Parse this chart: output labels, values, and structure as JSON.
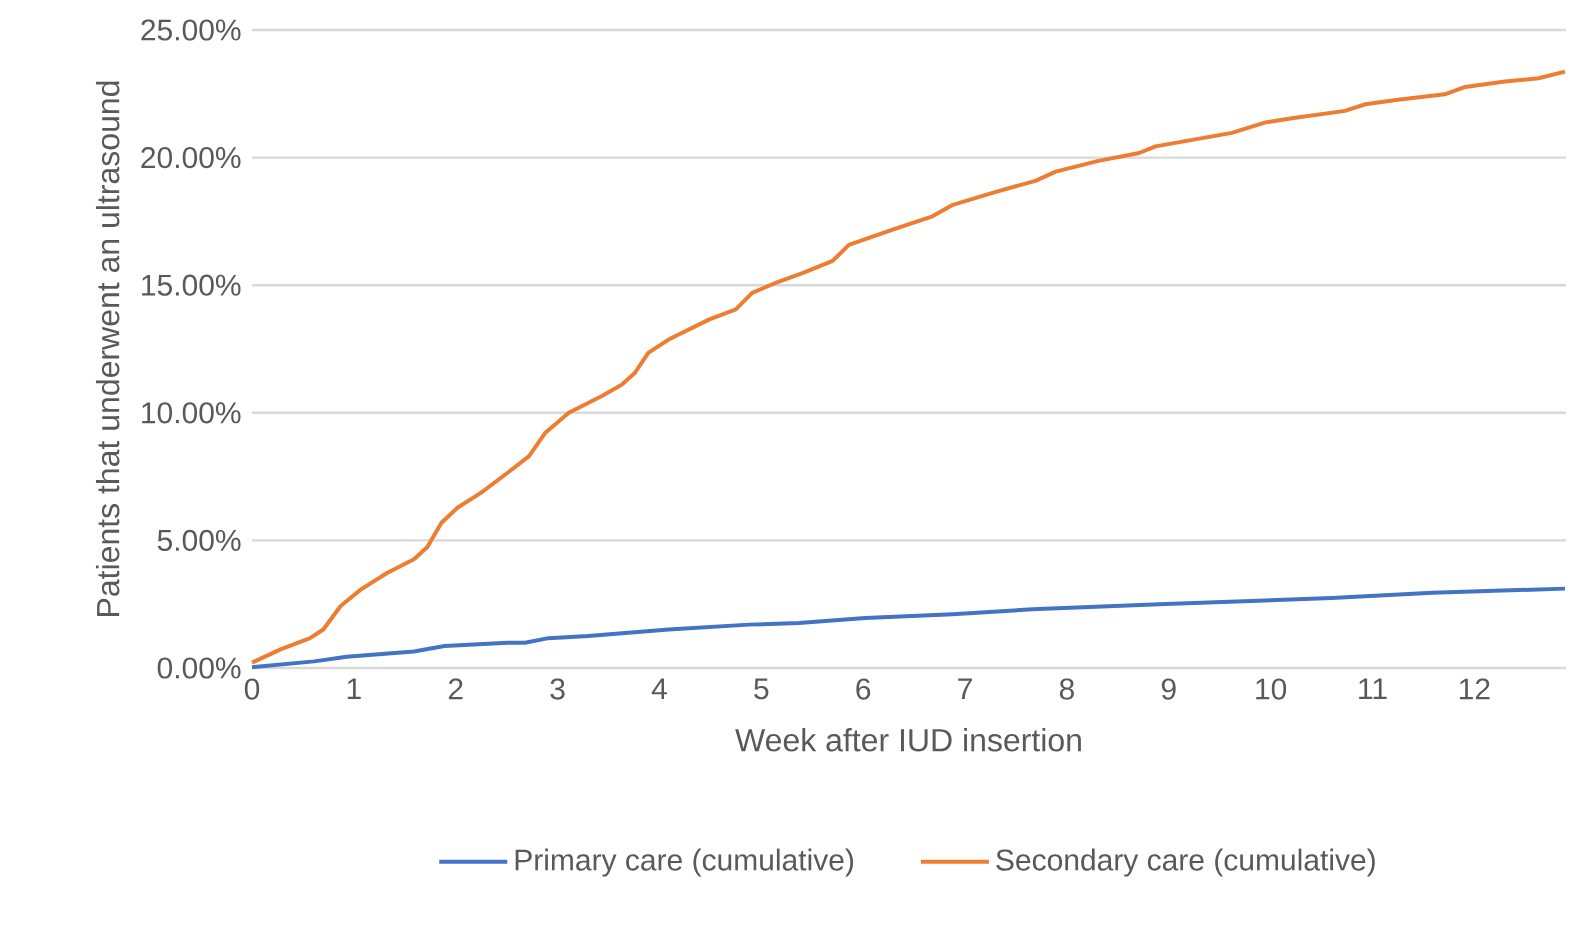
{
  "chart_data": {
    "type": "line",
    "xlabel": "Week after IUD insertion",
    "ylabel": "Patients that underwent an ultrasound",
    "xlim": [
      0,
      12.9
    ],
    "xticks": [
      0,
      1,
      2,
      3,
      4,
      5,
      6,
      7,
      8,
      9,
      10,
      11,
      12
    ],
    "ylim": [
      0,
      25
    ],
    "yticks": [
      {
        "value": 0,
        "label": "0.00%"
      },
      {
        "value": 5,
        "label": "5.00%"
      },
      {
        "value": 10,
        "label": "10.00%"
      },
      {
        "value": 15,
        "label": "15.00%"
      },
      {
        "value": 20,
        "label": "20.00%"
      },
      {
        "value": 25,
        "label": "25.00%"
      }
    ],
    "grid": "y",
    "legend": "bottom",
    "marker": "none",
    "line_style": "solid",
    "series": [
      {
        "name": "Primary care (cumulative)",
        "color": "#4472c4",
        "x": [
          0,
          0.61,
          0.93,
          1.59,
          1.89,
          2.51,
          2.68,
          2.91,
          3.3,
          4.09,
          4.88,
          5.37,
          6.02,
          6.88,
          7.66,
          8.97,
          10.6,
          11.59,
          12.89
        ],
        "values": [
          0.03,
          0.26,
          0.44,
          0.65,
          0.86,
          0.99,
          0.99,
          1.17,
          1.25,
          1.51,
          1.7,
          1.76,
          1.96,
          2.11,
          2.3,
          2.51,
          2.74,
          2.95,
          3.11
        ]
      },
      {
        "name": "Secondary care (cumulative)",
        "color": "#ed7d31",
        "x": [
          0,
          0.28,
          0.57,
          0.7,
          0.87,
          1.07,
          1.33,
          1.59,
          1.72,
          1.86,
          2.02,
          2.25,
          2.51,
          2.72,
          2.88,
          3.11,
          3.43,
          3.63,
          3.76,
          3.89,
          4.09,
          4.49,
          4.75,
          4.91,
          5.14,
          5.41,
          5.7,
          5.86,
          6.29,
          6.68,
          6.88,
          7.27,
          7.69,
          7.89,
          8.31,
          8.71,
          8.87,
          9.62,
          9.95,
          10.21,
          10.73,
          10.93,
          11.25,
          11.71,
          11.91,
          12.3,
          12.63,
          12.89
        ],
        "values": [
          0.21,
          0.73,
          1.17,
          1.51,
          2.43,
          3.08,
          3.73,
          4.26,
          4.73,
          5.69,
          6.29,
          6.87,
          7.65,
          8.3,
          9.22,
          10.0,
          10.65,
          11.1,
          11.57,
          12.35,
          12.87,
          13.66,
          14.05,
          14.7,
          15.09,
          15.48,
          15.95,
          16.58,
          17.18,
          17.7,
          18.15,
          18.62,
          19.09,
          19.45,
          19.87,
          20.18,
          20.44,
          20.97,
          21.38,
          21.54,
          21.83,
          22.09,
          22.27,
          22.48,
          22.77,
          22.98,
          23.11,
          23.37
        ]
      }
    ]
  }
}
